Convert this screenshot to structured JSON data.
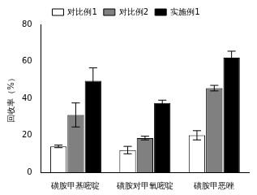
{
  "chart_data": {
    "type": "bar",
    "y_label": "回收率（%）",
    "categories": [
      "磺胺甲基嘧啶",
      "磺胺对甲氧嘧啶",
      "磺胺甲恶唑"
    ],
    "series": [
      {
        "name": "对比例1",
        "color": "#ffffff",
        "values": [
          14,
          12,
          20
        ],
        "errors": [
          0.7,
          2,
          2.5
        ]
      },
      {
        "name": "对比例2",
        "color": "#808080",
        "values": [
          31,
          18.5,
          45.5
        ],
        "errors": [
          6.5,
          1,
          1.5
        ]
      },
      {
        "name": "实施例1",
        "color": "#000000",
        "values": [
          49.5,
          37.5,
          62
        ],
        "errors": [
          7,
          1.5,
          3.5
        ]
      }
    ],
    "ylim": [
      0,
      80
    ],
    "yticks": [
      0,
      20,
      40,
      60,
      80
    ],
    "grid": false,
    "legend": "top"
  }
}
